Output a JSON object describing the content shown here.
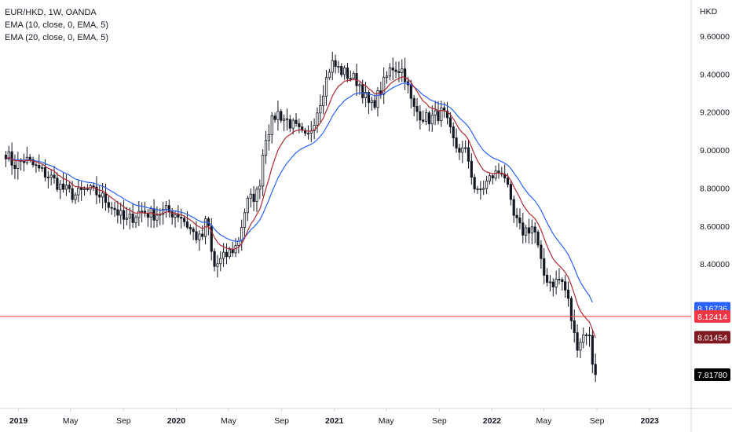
{
  "legend": {
    "symbol_line": "EUR/HKD, 1W, OANDA",
    "ema_fast": "EMA (10, close, 0, EMA, 5)",
    "ema_slow": "EMA (20, close, 0, EMA, 5)"
  },
  "chart_data": {
    "type": "candlestick",
    "title": "EUR/HKD, 1W, OANDA",
    "currency_label": "HKD",
    "y_ticks": [
      "9.60000",
      "9.40000",
      "9.20000",
      "9.00000",
      "8.80000",
      "8.60000",
      "8.40000"
    ],
    "ylim": [
      7.64,
      9.79
    ],
    "x_ticks": [
      "2019",
      "May",
      "Sep",
      "2020",
      "May",
      "Sep",
      "2021",
      "May",
      "Sep",
      "2022",
      "May",
      "Sep",
      "2023"
    ],
    "grid": false,
    "colors": {
      "up": "#131722",
      "down": "#131722",
      "ema_fast": "#b22833",
      "ema_slow": "#2962ff",
      "hline": "#f23645"
    },
    "ema_fast_name": "EMA (10, close, 0, EMA, 5)",
    "ema_slow_name": "EMA (20, close, 0, EMA, 5)",
    "horizontal_line": 8.12414,
    "price_tags": [
      {
        "value": 8.16736,
        "label": "8.16736",
        "color": "#2962ff"
      },
      {
        "value": 8.12414,
        "label": "8.12414",
        "color": "#f23645"
      },
      {
        "value": 8.01454,
        "label": "8.01454",
        "color": "#801922"
      },
      {
        "value": 7.8178,
        "label": "7.81780",
        "color": "#000000"
      }
    ],
    "anchor_closes": [
      [
        "2018-11-26",
        9.0
      ],
      [
        "2018-12-17",
        8.92
      ],
      [
        "2019-01-14",
        8.95
      ],
      [
        "2019-02-11",
        8.9
      ],
      [
        "2019-03-11",
        8.86
      ],
      [
        "2019-04-08",
        8.8
      ],
      [
        "2019-05-06",
        8.76
      ],
      [
        "2019-06-03",
        8.79
      ],
      [
        "2019-07-01",
        8.77
      ],
      [
        "2019-08-05",
        8.7
      ],
      [
        "2019-09-02",
        8.62
      ],
      [
        "2019-10-07",
        8.68
      ],
      [
        "2019-11-04",
        8.66
      ],
      [
        "2019-12-02",
        8.68
      ],
      [
        "2020-01-06",
        8.66
      ],
      [
        "2020-02-03",
        8.57
      ],
      [
        "2020-02-24",
        8.52
      ],
      [
        "2020-03-09",
        8.65
      ],
      [
        "2020-03-23",
        8.38
      ],
      [
        "2020-04-20",
        8.44
      ],
      [
        "2020-05-18",
        8.5
      ],
      [
        "2020-06-08",
        8.72
      ],
      [
        "2020-07-06",
        8.78
      ],
      [
        "2020-07-20",
        9.06
      ],
      [
        "2020-08-17",
        9.2
      ],
      [
        "2020-09-28",
        9.12
      ],
      [
        "2020-10-26",
        9.05
      ],
      [
        "2020-11-23",
        9.24
      ],
      [
        "2020-12-21",
        9.46
      ],
      [
        "2021-01-11",
        9.42
      ],
      [
        "2021-02-22",
        9.36
      ],
      [
        "2021-03-22",
        9.22
      ],
      [
        "2021-04-12",
        9.3
      ],
      [
        "2021-05-10",
        9.44
      ],
      [
        "2021-06-07",
        9.42
      ],
      [
        "2021-06-28",
        9.22
      ],
      [
        "2021-08-02",
        9.16
      ],
      [
        "2021-09-06",
        9.2
      ],
      [
        "2021-10-04",
        9.02
      ],
      [
        "2021-11-01",
        8.98
      ],
      [
        "2021-11-22",
        8.76
      ],
      [
        "2021-12-27",
        8.86
      ],
      [
        "2022-01-24",
        8.9
      ],
      [
        "2022-02-14",
        8.66
      ],
      [
        "2022-03-07",
        8.57
      ],
      [
        "2022-04-04",
        8.6
      ],
      [
        "2022-04-25",
        8.35
      ],
      [
        "2022-05-16",
        8.3
      ],
      [
        "2022-06-06",
        8.32
      ],
      [
        "2022-06-20",
        8.24
      ],
      [
        "2022-07-11",
        7.97
      ],
      [
        "2022-08-08",
        8.06
      ],
      [
        "2022-08-22",
        7.8178
      ]
    ]
  }
}
